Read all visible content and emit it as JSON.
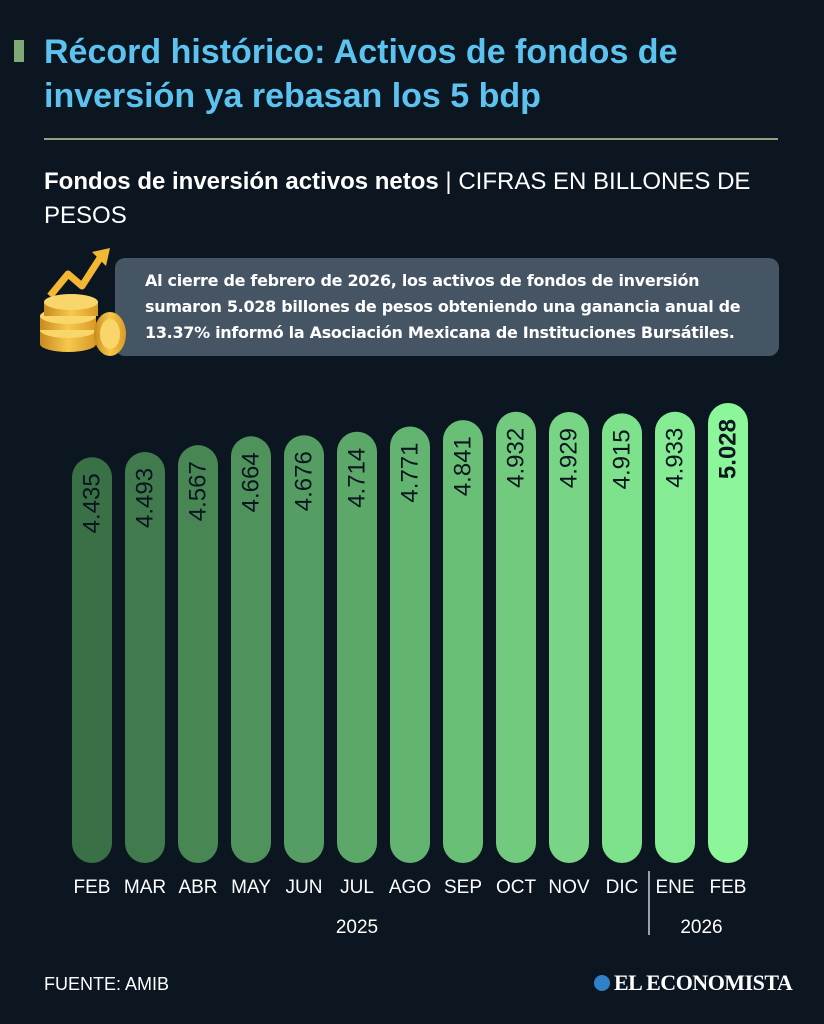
{
  "header": {
    "title": "Récord histórico: Activos de fondos de inversión ya rebasan los 5 bdp"
  },
  "subheader": {
    "bold": "Fondos de inversión activos netos",
    "separator": " | ",
    "units": "CIFRAS EN BILLONES DE PESOS"
  },
  "note": {
    "text": "Al cierre de febrero de 2026, los activos de fondos de inversión sumaron 5.028 billones de pesos obteniendo una ganancia anual de 13.37% informó la Asociación Mexicana de Instituciones Bursátiles.",
    "icon": "coins-arrow-up-icon"
  },
  "colors": {
    "background": "#0b1620",
    "title": "#5cc3f0",
    "bar_start": "#3a7046",
    "bar_end": "#8cf79a",
    "note_bg": "#465564",
    "value_text": "#0b1620"
  },
  "chart_data": {
    "type": "bar",
    "categories": [
      "FEB",
      "MAR",
      "ABR",
      "MAY",
      "JUN",
      "JUL",
      "AGO",
      "SEP",
      "OCT",
      "NOV",
      "DIC",
      "ENE",
      "FEB"
    ],
    "values": [
      4.435,
      4.493,
      4.567,
      4.664,
      4.676,
      4.714,
      4.771,
      4.841,
      4.932,
      4.929,
      4.915,
      4.933,
      5.028
    ],
    "value_labels": [
      "4.435",
      "4.493",
      "4.567",
      "4.664",
      "4.676",
      "4.714",
      "4.771",
      "4.841",
      "4.932",
      "4.929",
      "4.915",
      "4.933",
      "5.028"
    ],
    "highlight_index": 12,
    "year_groups": [
      {
        "label": "2025",
        "start": 0,
        "end": 10
      },
      {
        "label": "2026",
        "start": 11,
        "end": 12
      }
    ],
    "title": "",
    "xlabel": "",
    "ylabel": "",
    "ylim": [
      0,
      5.028
    ]
  },
  "footer": {
    "source": "FUENTE: AMIB",
    "logo": "EL ECONOMISTA"
  }
}
